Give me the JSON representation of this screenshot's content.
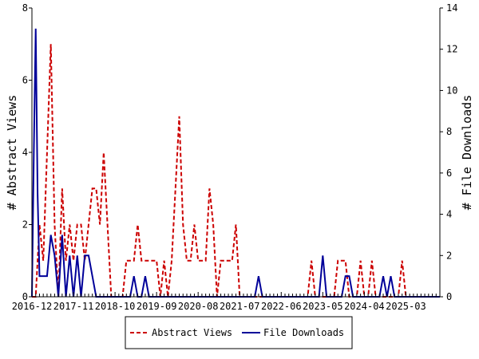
{
  "chart_data": {
    "type": "line",
    "title": "",
    "left_ylabel": "# Abstract Views",
    "right_ylabel": "# File Downloads",
    "xlabel": "",
    "left_ylim": [
      0,
      8
    ],
    "right_ylim": [
      0,
      14
    ],
    "left_yticks": [
      "0",
      "2",
      "4",
      "6",
      "8"
    ],
    "right_yticks": [
      "0",
      "2",
      "4",
      "6",
      "8",
      "10",
      "12",
      "14"
    ],
    "x_tick_labels": [
      "2016-12",
      "2017-11",
      "2018-10",
      "2019-09",
      "2020-08",
      "2021-07",
      "2022-06",
      "2023-05",
      "2024-04",
      "2025-03"
    ],
    "x_tick_months": [
      0,
      11,
      22,
      33,
      44,
      55,
      66,
      77,
      88,
      99
    ],
    "x_range_months": [
      0,
      108
    ],
    "series": [
      {
        "name": "Abstract Views",
        "axis": "left",
        "color": "#cc0000",
        "dash": "dashed",
        "x_months": [
          0,
          1,
          2,
          3,
          4,
          5,
          6,
          7,
          8,
          9,
          10,
          11,
          12,
          13,
          14,
          15,
          16,
          17,
          18,
          19,
          20,
          21,
          22,
          23,
          24,
          25,
          26,
          27,
          28,
          29,
          30,
          31,
          32,
          33,
          34,
          35,
          36,
          37,
          38,
          39,
          40,
          41,
          42,
          43,
          44,
          45,
          46,
          47,
          48,
          49,
          50,
          51,
          52,
          53,
          54,
          55,
          56,
          57,
          58,
          59,
          60,
          61,
          62,
          63,
          64,
          65,
          66,
          67,
          68,
          69,
          70,
          71,
          72,
          73,
          74,
          75,
          76,
          77,
          78,
          79,
          80,
          81,
          82,
          83,
          84,
          85,
          86,
          87,
          88,
          89,
          90,
          91,
          92,
          93,
          94,
          95,
          96,
          97,
          98,
          99,
          100,
          101,
          102,
          103,
          104,
          105,
          106,
          107,
          108
        ],
        "values": [
          0,
          0,
          2,
          1,
          4,
          7,
          2,
          0,
          3,
          1,
          2,
          1,
          2,
          2,
          1,
          2,
          3,
          3,
          2,
          4,
          2,
          0,
          0,
          0,
          0,
          1,
          1,
          1,
          2,
          1,
          1,
          1,
          1,
          1,
          0,
          1,
          0,
          1,
          3,
          5,
          2,
          1,
          1,
          2,
          1,
          1,
          1,
          3,
          2,
          0,
          1,
          1,
          1,
          1,
          2,
          0,
          0,
          0,
          0,
          0,
          0,
          0,
          0,
          0,
          0,
          0,
          0,
          0,
          0,
          0,
          0,
          0,
          0,
          0,
          1,
          0,
          0,
          0,
          0,
          0,
          0,
          1,
          1,
          1,
          0,
          0,
          0,
          1,
          0,
          0,
          1,
          0,
          0,
          0,
          0,
          0,
          0,
          0,
          1,
          0,
          0,
          0,
          0,
          0,
          0,
          0,
          0,
          0,
          0
        ]
      },
      {
        "name": "File Downloads",
        "axis": "right",
        "color": "#000099",
        "dash": "solid",
        "x_months": [
          0,
          0.5,
          1,
          1.5,
          2,
          3,
          4,
          5,
          6,
          7,
          8,
          9,
          10,
          11,
          12,
          13,
          14,
          15,
          16,
          17,
          18,
          19,
          20,
          21,
          22,
          23,
          24,
          25,
          26,
          27,
          28,
          29,
          30,
          31,
          32,
          33,
          34,
          35,
          36,
          37,
          38,
          39,
          40,
          41,
          42,
          43,
          44,
          45,
          46,
          47,
          48,
          49,
          50,
          51,
          52,
          53,
          54,
          55,
          56,
          57,
          58,
          59,
          60,
          61,
          62,
          63,
          64,
          65,
          66,
          67,
          68,
          69,
          70,
          71,
          72,
          73,
          74,
          75,
          76,
          77,
          78,
          79,
          80,
          81,
          82,
          83,
          84,
          85,
          86,
          87,
          88,
          89,
          90,
          91,
          92,
          93,
          94,
          95,
          96,
          97,
          98,
          99,
          100,
          101,
          102,
          103,
          104,
          105,
          106,
          107,
          108
        ],
        "values": [
          0,
          7,
          13,
          5,
          1,
          1,
          1,
          3,
          2,
          0,
          3,
          0,
          2,
          0,
          2,
          0,
          2,
          2,
          1,
          0,
          0,
          0,
          0,
          0,
          0,
          0,
          0,
          0,
          0,
          1,
          0,
          0,
          1,
          0,
          0,
          0,
          0,
          0,
          0,
          0,
          0,
          0,
          0,
          0,
          0,
          0,
          0,
          0,
          0,
          0,
          0,
          0,
          0,
          0,
          0,
          0,
          0,
          0,
          0,
          0,
          0,
          0,
          1,
          0,
          0,
          0,
          0,
          0,
          0,
          0,
          0,
          0,
          0,
          0,
          0,
          0,
          0,
          0,
          0,
          2,
          0,
          0,
          0,
          0,
          0,
          1,
          1,
          0,
          0,
          0,
          0,
          0,
          0,
          0,
          0,
          1,
          0,
          1,
          0,
          0,
          0,
          0,
          0,
          0,
          0,
          0,
          0,
          0,
          0,
          0,
          0
        ]
      }
    ],
    "legend": {
      "placement": "bottom-center",
      "items": [
        {
          "label": "Abstract Views",
          "color": "#cc0000",
          "dash": "dashed"
        },
        {
          "label": "File Downloads",
          "color": "#000099",
          "dash": "solid"
        }
      ]
    },
    "grid": false
  }
}
